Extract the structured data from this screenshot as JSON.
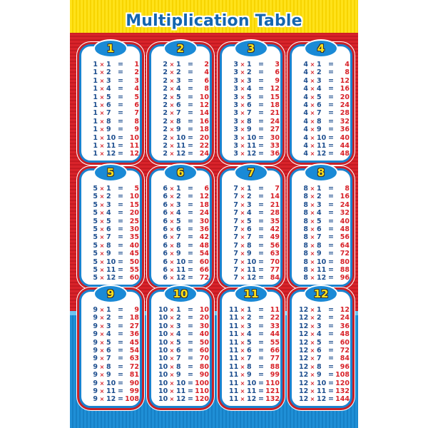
{
  "title": "Multiplication Table",
  "symbols": {
    "times": "×",
    "equals": "="
  },
  "colors": {
    "yellow": "#ffe21a",
    "red": "#d8232a",
    "blue": "#1a82cf",
    "number": "#1e4f8f",
    "product": "#d8232a"
  },
  "tables": [
    {
      "n": "1",
      "rows": [
        [
          "1",
          "1",
          "1"
        ],
        [
          "1",
          "2",
          "2"
        ],
        [
          "1",
          "3",
          "3"
        ],
        [
          "1",
          "4",
          "4"
        ],
        [
          "1",
          "5",
          "5"
        ],
        [
          "1",
          "6",
          "6"
        ],
        [
          "1",
          "7",
          "7"
        ],
        [
          "1",
          "8",
          "8"
        ],
        [
          "1",
          "9",
          "9"
        ],
        [
          "1",
          "10",
          "10"
        ],
        [
          "1",
          "11",
          "11"
        ],
        [
          "1",
          "12",
          "12"
        ]
      ]
    },
    {
      "n": "2",
      "rows": [
        [
          "2",
          "1",
          "2"
        ],
        [
          "2",
          "2",
          "4"
        ],
        [
          "2",
          "3",
          "6"
        ],
        [
          "2",
          "4",
          "8"
        ],
        [
          "2",
          "5",
          "10"
        ],
        [
          "2",
          "6",
          "12"
        ],
        [
          "2",
          "7",
          "14"
        ],
        [
          "2",
          "8",
          "16"
        ],
        [
          "2",
          "9",
          "18"
        ],
        [
          "2",
          "10",
          "20"
        ],
        [
          "2",
          "11",
          "22"
        ],
        [
          "2",
          "12",
          "24"
        ]
      ]
    },
    {
      "n": "3",
      "rows": [
        [
          "3",
          "1",
          "3"
        ],
        [
          "3",
          "2",
          "6"
        ],
        [
          "3",
          "3",
          "9"
        ],
        [
          "3",
          "4",
          "12"
        ],
        [
          "3",
          "5",
          "15"
        ],
        [
          "3",
          "6",
          "18"
        ],
        [
          "3",
          "7",
          "21"
        ],
        [
          "3",
          "8",
          "24"
        ],
        [
          "3",
          "9",
          "27"
        ],
        [
          "3",
          "10",
          "30"
        ],
        [
          "3",
          "11",
          "33"
        ],
        [
          "3",
          "12",
          "36"
        ]
      ]
    },
    {
      "n": "4",
      "rows": [
        [
          "4",
          "1",
          "4"
        ],
        [
          "4",
          "2",
          "8"
        ],
        [
          "4",
          "3",
          "12"
        ],
        [
          "4",
          "4",
          "16"
        ],
        [
          "4",
          "5",
          "20"
        ],
        [
          "4",
          "6",
          "24"
        ],
        [
          "4",
          "7",
          "28"
        ],
        [
          "4",
          "8",
          "32"
        ],
        [
          "4",
          "9",
          "36"
        ],
        [
          "4",
          "10",
          "40"
        ],
        [
          "4",
          "11",
          "44"
        ],
        [
          "4",
          "12",
          "48"
        ]
      ]
    },
    {
      "n": "5",
      "rows": [
        [
          "5",
          "1",
          "5"
        ],
        [
          "5",
          "2",
          "10"
        ],
        [
          "5",
          "3",
          "15"
        ],
        [
          "5",
          "4",
          "20"
        ],
        [
          "5",
          "5",
          "25"
        ],
        [
          "5",
          "6",
          "30"
        ],
        [
          "5",
          "7",
          "35"
        ],
        [
          "5",
          "8",
          "40"
        ],
        [
          "5",
          "9",
          "45"
        ],
        [
          "5",
          "10",
          "50"
        ],
        [
          "5",
          "11",
          "55"
        ],
        [
          "5",
          "12",
          "60"
        ]
      ]
    },
    {
      "n": "6",
      "rows": [
        [
          "6",
          "1",
          "6"
        ],
        [
          "6",
          "2",
          "12"
        ],
        [
          "6",
          "3",
          "18"
        ],
        [
          "6",
          "4",
          "24"
        ],
        [
          "6",
          "5",
          "30"
        ],
        [
          "6",
          "6",
          "36"
        ],
        [
          "6",
          "7",
          "42"
        ],
        [
          "6",
          "8",
          "48"
        ],
        [
          "6",
          "9",
          "54"
        ],
        [
          "6",
          "10",
          "60"
        ],
        [
          "6",
          "11",
          "66"
        ],
        [
          "6",
          "12",
          "72"
        ]
      ]
    },
    {
      "n": "7",
      "rows": [
        [
          "7",
          "1",
          "7"
        ],
        [
          "7",
          "2",
          "14"
        ],
        [
          "7",
          "3",
          "21"
        ],
        [
          "7",
          "4",
          "28"
        ],
        [
          "7",
          "5",
          "35"
        ],
        [
          "7",
          "6",
          "42"
        ],
        [
          "7",
          "7",
          "49"
        ],
        [
          "7",
          "8",
          "56"
        ],
        [
          "7",
          "9",
          "63"
        ],
        [
          "7",
          "10",
          "70"
        ],
        [
          "7",
          "11",
          "77"
        ],
        [
          "7",
          "12",
          "84"
        ]
      ]
    },
    {
      "n": "8",
      "rows": [
        [
          "8",
          "1",
          "8"
        ],
        [
          "8",
          "2",
          "16"
        ],
        [
          "8",
          "3",
          "24"
        ],
        [
          "8",
          "4",
          "32"
        ],
        [
          "8",
          "5",
          "40"
        ],
        [
          "8",
          "6",
          "48"
        ],
        [
          "8",
          "7",
          "56"
        ],
        [
          "8",
          "8",
          "64"
        ],
        [
          "8",
          "9",
          "72"
        ],
        [
          "8",
          "10",
          "80"
        ],
        [
          "8",
          "11",
          "88"
        ],
        [
          "8",
          "12",
          "96"
        ]
      ]
    },
    {
      "n": "9",
      "rows": [
        [
          "9",
          "1",
          "9"
        ],
        [
          "9",
          "2",
          "18"
        ],
        [
          "9",
          "3",
          "27"
        ],
        [
          "9",
          "4",
          "36"
        ],
        [
          "9",
          "5",
          "45"
        ],
        [
          "9",
          "6",
          "54"
        ],
        [
          "9",
          "7",
          "63"
        ],
        [
          "9",
          "8",
          "72"
        ],
        [
          "9",
          "9",
          "81"
        ],
        [
          "9",
          "10",
          "90"
        ],
        [
          "9",
          "11",
          "99"
        ],
        [
          "9",
          "12",
          "108"
        ]
      ]
    },
    {
      "n": "10",
      "rows": [
        [
          "10",
          "1",
          "10"
        ],
        [
          "10",
          "2",
          "20"
        ],
        [
          "10",
          "3",
          "30"
        ],
        [
          "10",
          "4",
          "40"
        ],
        [
          "10",
          "5",
          "50"
        ],
        [
          "10",
          "6",
          "60"
        ],
        [
          "10",
          "7",
          "70"
        ],
        [
          "10",
          "8",
          "80"
        ],
        [
          "10",
          "9",
          "90"
        ],
        [
          "10",
          "10",
          "100"
        ],
        [
          "10",
          "11",
          "110"
        ],
        [
          "10",
          "12",
          "120"
        ]
      ]
    },
    {
      "n": "11",
      "rows": [
        [
          "11",
          "1",
          "11"
        ],
        [
          "11",
          "2",
          "22"
        ],
        [
          "11",
          "3",
          "33"
        ],
        [
          "11",
          "4",
          "44"
        ],
        [
          "11",
          "5",
          "55"
        ],
        [
          "11",
          "6",
          "66"
        ],
        [
          "11",
          "7",
          "77"
        ],
        [
          "11",
          "8",
          "88"
        ],
        [
          "11",
          "9",
          "99"
        ],
        [
          "11",
          "10",
          "110"
        ],
        [
          "11",
          "11",
          "121"
        ],
        [
          "11",
          "12",
          "132"
        ]
      ]
    },
    {
      "n": "12",
      "rows": [
        [
          "12",
          "1",
          "12"
        ],
        [
          "12",
          "2",
          "24"
        ],
        [
          "12",
          "3",
          "36"
        ],
        [
          "12",
          "4",
          "48"
        ],
        [
          "12",
          "5",
          "60"
        ],
        [
          "12",
          "6",
          "72"
        ],
        [
          "12",
          "7",
          "84"
        ],
        [
          "12",
          "8",
          "96"
        ],
        [
          "12",
          "9",
          "108"
        ],
        [
          "12",
          "10",
          "120"
        ],
        [
          "12",
          "11",
          "132"
        ],
        [
          "12",
          "12",
          "144"
        ]
      ]
    }
  ]
}
